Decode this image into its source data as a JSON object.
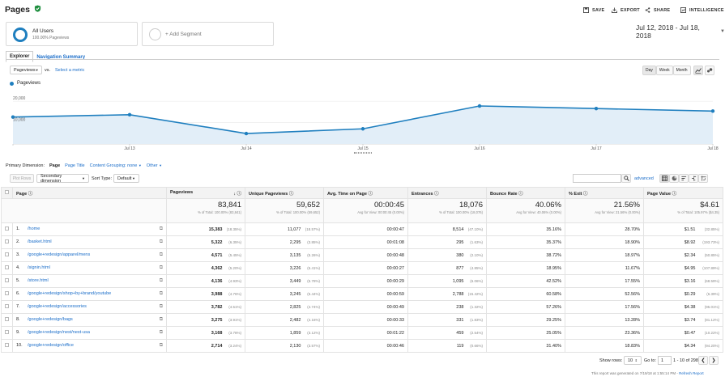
{
  "header": {
    "title": "Pages",
    "save": "SAVE",
    "export": "EXPORT",
    "share": "SHARE",
    "intelligence": "INTELLIGENCE"
  },
  "segments": {
    "all_users_title": "All Users",
    "all_users_sub": "100.00% Pageviews",
    "add_segment": "+ Add Segment"
  },
  "date_range": "Jul 12, 2018 - Jul 18, 2018",
  "tabs": [
    "Explorer",
    "Navigation Summary"
  ],
  "metric_select": {
    "value": "Pageviews",
    "vs": "vs.",
    "select_metric": "Select a metric"
  },
  "granularity": [
    "Day",
    "Week",
    "Month"
  ],
  "chart_data": {
    "type": "area",
    "series": [
      {
        "name": "Pageviews",
        "values": [
          12600,
          13700,
          4900,
          7100,
          17800,
          16600,
          15400
        ]
      }
    ],
    "x_labels": [
      "",
      "Jul 13",
      "Jul 14",
      "Jul 15",
      "Jul 16",
      "Jul 17",
      "Jul 18"
    ],
    "y_ticks": [
      "20,000",
      "10,000"
    ],
    "ylim": [
      0,
      25000
    ],
    "colors": {
      "line": "#1f7fbf",
      "fill": "#e2eef8"
    }
  },
  "primary_dimension": {
    "label": "Primary Dimension:",
    "page": "Page",
    "page_title": "Page Title",
    "content_grouping": "Content Grouping: none",
    "other": "Other"
  },
  "table_controls": {
    "plot_rows": "Plot Rows",
    "secondary_dimension": "Secondary dimension",
    "sort_type_label": "Sort Type:",
    "sort_type_value": "Default",
    "advanced": "advanced"
  },
  "columns": [
    "Page",
    "Pageviews",
    "Unique Pageviews",
    "Avg. Time on Page",
    "Entrances",
    "Bounce Rate",
    "% Exit",
    "Page Value"
  ],
  "totals": [
    {
      "value": "83,841",
      "sub": "% of Total: 100.00% (83,841)"
    },
    {
      "value": "59,652",
      "sub": "% of Total: 100.00% (59,652)"
    },
    {
      "value": "00:00:45",
      "sub": "Avg for View: 00:00:45 (0.00%)"
    },
    {
      "value": "18,076",
      "sub": "% of Total: 100.00% (18,076)"
    },
    {
      "value": "40.06%",
      "sub": "Avg for View: 40.06% (0.00%)"
    },
    {
      "value": "21.56%",
      "sub": "Avg for View: 21.56% (0.00%)"
    },
    {
      "value": "$4.61",
      "sub": "% of Total: 105.97% ($4.35)"
    }
  ],
  "rows": [
    {
      "n": "1.",
      "page": "/home",
      "pv": "15,383",
      "pvp": "(18.35%)",
      "upv": "11,077",
      "upvp": "(18.57%)",
      "avg": "00:00:47",
      "ent": "8,514",
      "entp": "(47.10%)",
      "br": "35.16%",
      "exit": "28.70%",
      "val": "$1.51",
      "valp": "(32.85%)"
    },
    {
      "n": "2.",
      "page": "/basket.html",
      "pv": "5,322",
      "pvp": "(6.35%)",
      "upv": "2,295",
      "upvp": "(3.85%)",
      "avg": "00:01:08",
      "ent": "295",
      "entp": "(1.63%)",
      "br": "35.37%",
      "exit": "18.90%",
      "val": "$8.92",
      "valp": "(193.73%)"
    },
    {
      "n": "3.",
      "page": "/google+redesign/apparel/mens",
      "pv": "4,571",
      "pvp": "(5.45%)",
      "upv": "3,135",
      "upvp": "(5.26%)",
      "avg": "00:00:48",
      "ent": "380",
      "entp": "(2.10%)",
      "br": "38.72%",
      "exit": "18.97%",
      "val": "$2.34",
      "valp": "(50.85%)"
    },
    {
      "n": "4.",
      "page": "/signin.html",
      "pv": "4,362",
      "pvp": "(5.20%)",
      "upv": "3,226",
      "upvp": "(5.41%)",
      "avg": "00:00:27",
      "ent": "877",
      "entp": "(4.85%)",
      "br": "18.95%",
      "exit": "11.67%",
      "val": "$4.95",
      "valp": "(107.89%)"
    },
    {
      "n": "5.",
      "page": "/store.html",
      "pv": "4,136",
      "pvp": "(4.93%)",
      "upv": "3,449",
      "upvp": "(5.78%)",
      "avg": "00:00:29",
      "ent": "1,095",
      "entp": "(6.06%)",
      "br": "42.52%",
      "exit": "17.55%",
      "val": "$3.16",
      "valp": "(68.59%)"
    },
    {
      "n": "6.",
      "page": "/google+redesign/shop+by+brand/youtube",
      "pv": "3,988",
      "pvp": "(4.76%)",
      "upv": "3,245",
      "upvp": "(5.44%)",
      "avg": "00:00:59",
      "ent": "2,788",
      "entp": "(15.42%)",
      "br": "60.58%",
      "exit": "52.56%",
      "val": "$0.29",
      "valp": "(6.39%)"
    },
    {
      "n": "7.",
      "page": "/google+redesign/accessories",
      "pv": "3,782",
      "pvp": "(4.51%)",
      "upv": "2,825",
      "upvp": "(4.74%)",
      "avg": "00:00:49",
      "ent": "238",
      "entp": "(1.32%)",
      "br": "57.26%",
      "exit": "17.56%",
      "val": "$4.38",
      "valp": "(95.01%)"
    },
    {
      "n": "8.",
      "page": "/google+redesign/bags",
      "pv": "3,275",
      "pvp": "(3.91%)",
      "upv": "2,482",
      "upvp": "(4.16%)",
      "avg": "00:00:33",
      "ent": "331",
      "entp": "(1.83%)",
      "br": "29.25%",
      "exit": "13.28%",
      "val": "$3.74",
      "valp": "(81.12%)"
    },
    {
      "n": "9.",
      "page": "/google+redesign/nest/nest-usa",
      "pv": "3,168",
      "pvp": "(3.78%)",
      "upv": "1,859",
      "upvp": "(3.12%)",
      "avg": "00:01:22",
      "ent": "459",
      "entp": "(2.54%)",
      "br": "25.05%",
      "exit": "23.36%",
      "val": "$0.47",
      "valp": "(10.22%)"
    },
    {
      "n": "10.",
      "page": "/google+redesign/office",
      "pv": "2,714",
      "pvp": "(3.24%)",
      "upv": "2,130",
      "upvp": "(3.57%)",
      "avg": "00:00:46",
      "ent": "119",
      "entp": "(0.66%)",
      "br": "31.40%",
      "exit": "18.83%",
      "val": "$4.34",
      "valp": "(94.20%)"
    }
  ],
  "pagination": {
    "show_rows_label": "Show rows:",
    "show_rows_value": "10",
    "goto_label": "Go to:",
    "goto_value": "1",
    "range": "1 - 10 of 298"
  },
  "footer": {
    "generated": "This report was generated on 7/19/18 at 1:55:14 PM -",
    "refresh": "Refresh Report"
  }
}
